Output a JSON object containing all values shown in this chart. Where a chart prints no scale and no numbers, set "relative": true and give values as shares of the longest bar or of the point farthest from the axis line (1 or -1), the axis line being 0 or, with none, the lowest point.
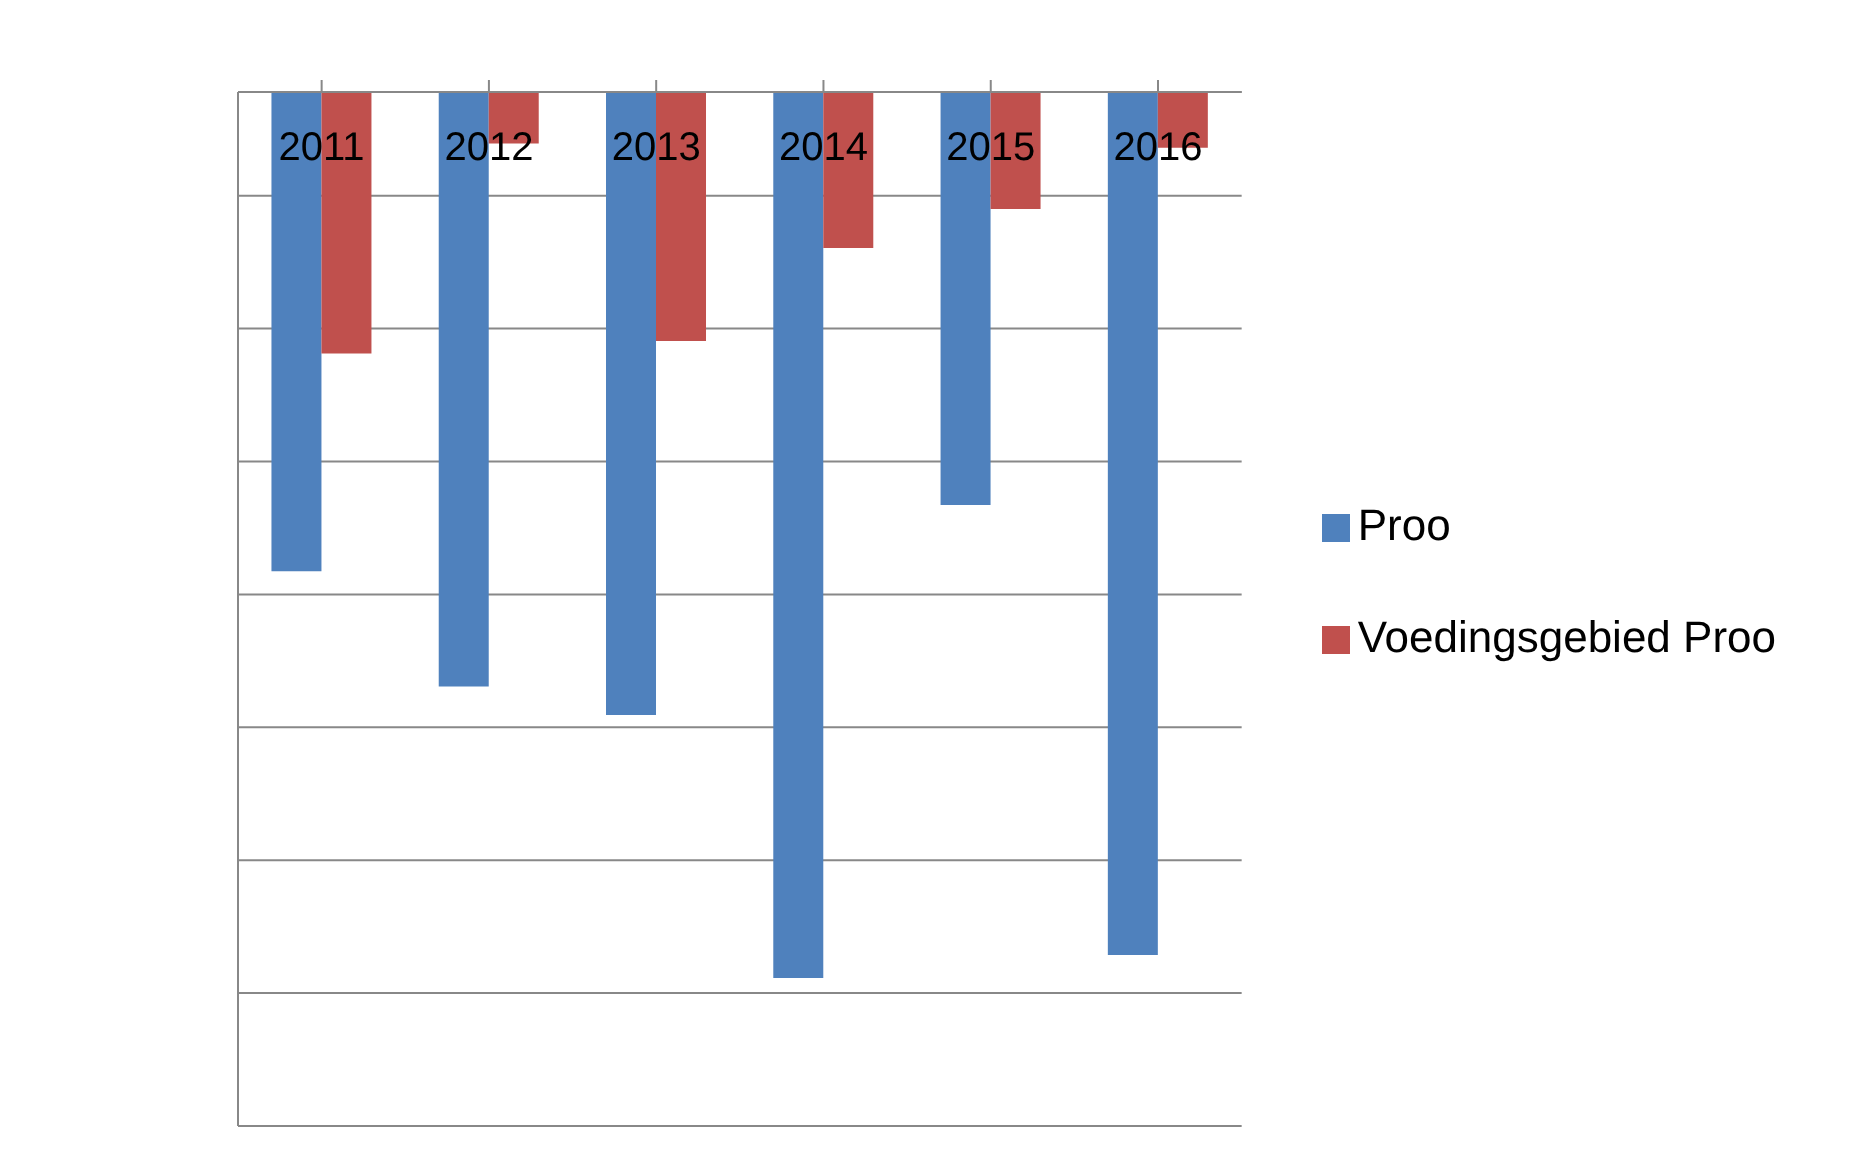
{
  "chart_data": {
    "type": "bar",
    "relative": true,
    "categories": [
      "2011",
      "2012",
      "2013",
      "2014",
      "2015",
      "2016"
    ],
    "series": [
      {
        "name": "Proo",
        "color": "#4f81bd",
        "values": [
          -0.541,
          -0.671,
          -0.703,
          -1,
          -0.466,
          -0.974
        ]
      },
      {
        "name": "Voedingsgebied Proo",
        "color": "#c0504d",
        "values": [
          -0.295,
          -0.058,
          -0.281,
          -0.176,
          -0.132,
          -0.063
        ]
      }
    ],
    "grid": "y",
    "legend": "right"
  }
}
